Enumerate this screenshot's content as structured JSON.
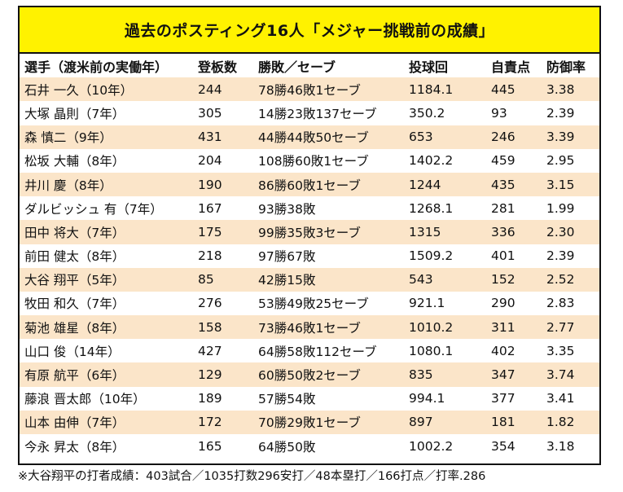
{
  "title": "過去のポスティング16人「メジャー挑戦前の成績」",
  "headers": [
    "選手（渡米前の実働年）",
    "登板数",
    "勝敗／セーブ",
    "投球回",
    "自責点",
    "防御率"
  ],
  "rows": [
    [
      "石井 一久（10年）",
      "244",
      "78勝46敗1セーブ",
      "1184.1",
      "445",
      "3.38"
    ],
    [
      "大塚 晶則（7年）",
      "305",
      "14勝23敗137セーブ",
      "350.2",
      "93",
      "2.39"
    ],
    [
      "森 慎二（9年）",
      "431",
      "44勝44敗50セーブ",
      "653",
      "246",
      "3.39"
    ],
    [
      "松坂 大輔（8年）",
      "204",
      "108勝60敗1セーブ",
      "1402.2",
      "459",
      "2.95"
    ],
    [
      "井川 慶（8年）",
      "190",
      "86勝60敗1セーブ",
      "1244",
      "435",
      "3.15"
    ],
    [
      "ダルビッシュ 有（7年）",
      "167",
      "93勝38敗",
      "1268.1",
      "281",
      "1.99"
    ],
    [
      "田中 将大（7年）",
      "175",
      "99勝35敗3セーブ",
      "1315",
      "336",
      "2.30"
    ],
    [
      "前田 健太（8年）",
      "218",
      "97勝67敗",
      "1509.2",
      "401",
      "2.39"
    ],
    [
      "大谷 翔平（5年）",
      "85",
      "42勝15敗",
      "543",
      "152",
      "2.52"
    ],
    [
      "牧田 和久（7年）",
      "276",
      "53勝49敗25セーブ",
      "921.1",
      "290",
      "2.83"
    ],
    [
      "菊池 雄星（8年）",
      "158",
      "73勝46敗1セーブ",
      "1010.2",
      "311",
      "2.77"
    ],
    [
      "山口 俊（14年）",
      "427",
      "64勝58敗112セーブ",
      "1080.1",
      "402",
      "3.35"
    ],
    [
      "有原 航平（6年）",
      "129",
      "60勝50敗2セーブ",
      "835",
      "347",
      "3.74"
    ],
    [
      "藤浪 晋太郎（10年）",
      "189",
      "57勝54敗",
      "994.1",
      "377",
      "3.41"
    ],
    [
      "山本 由伸（7年）",
      "172",
      "70勝29敗1セーブ",
      "897",
      "181",
      "1.82"
    ],
    [
      "今永 昇太（8年）",
      "165",
      "64勝50敗",
      "1002.2",
      "354",
      "3.18"
    ]
  ],
  "footnote": "※大谷翔平の打者成績：403試合／1035打数296安打／48本塁打／166打点／打率.286"
}
